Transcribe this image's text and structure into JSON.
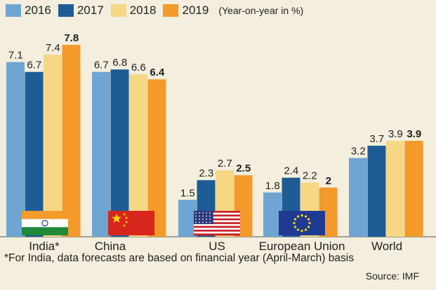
{
  "legend": {
    "items": [
      {
        "label": "2016",
        "color": "#6fa5d3"
      },
      {
        "label": "2017",
        "color": "#1e5c96"
      },
      {
        "label": "2018",
        "color": "#f6d784"
      },
      {
        "label": "2019",
        "color": "#f39a2a"
      }
    ],
    "note": "(Year-on-year in %)"
  },
  "chart_data": {
    "type": "bar",
    "categories": [
      "India*",
      "China",
      "US",
      "European Union",
      "World"
    ],
    "series": [
      {
        "name": "2016",
        "values": [
          7.1,
          6.7,
          1.5,
          1.8,
          3.2
        ]
      },
      {
        "name": "2017",
        "values": [
          6.7,
          6.8,
          2.3,
          2.4,
          3.7
        ]
      },
      {
        "name": "2018",
        "values": [
          7.4,
          6.6,
          2.7,
          2.2,
          3.9
        ]
      },
      {
        "name": "2019",
        "values": [
          7.8,
          6.4,
          2.5,
          2,
          3.9
        ]
      }
    ],
    "data_labels": [
      [
        "7.1",
        "6.7",
        "7.4",
        "7.8"
      ],
      [
        "6.7",
        "6.8",
        "6.6",
        "6.4"
      ],
      [
        "1.5",
        "2.3",
        "2.7",
        "2.5"
      ],
      [
        "1.8",
        "2.4",
        "2.2",
        "2"
      ],
      [
        "3.2",
        "3.7",
        "3.9",
        "3.9"
      ]
    ],
    "flags": [
      "india-flag",
      "china-flag",
      "us-flag",
      "eu-flag",
      ""
    ],
    "ylim": [
      0,
      8.2
    ],
    "grid": false,
    "legend_position": "top-left"
  },
  "footnote": "*For India, data forecasts are based on financial year (April-March) basis",
  "source": "Source: IMF"
}
